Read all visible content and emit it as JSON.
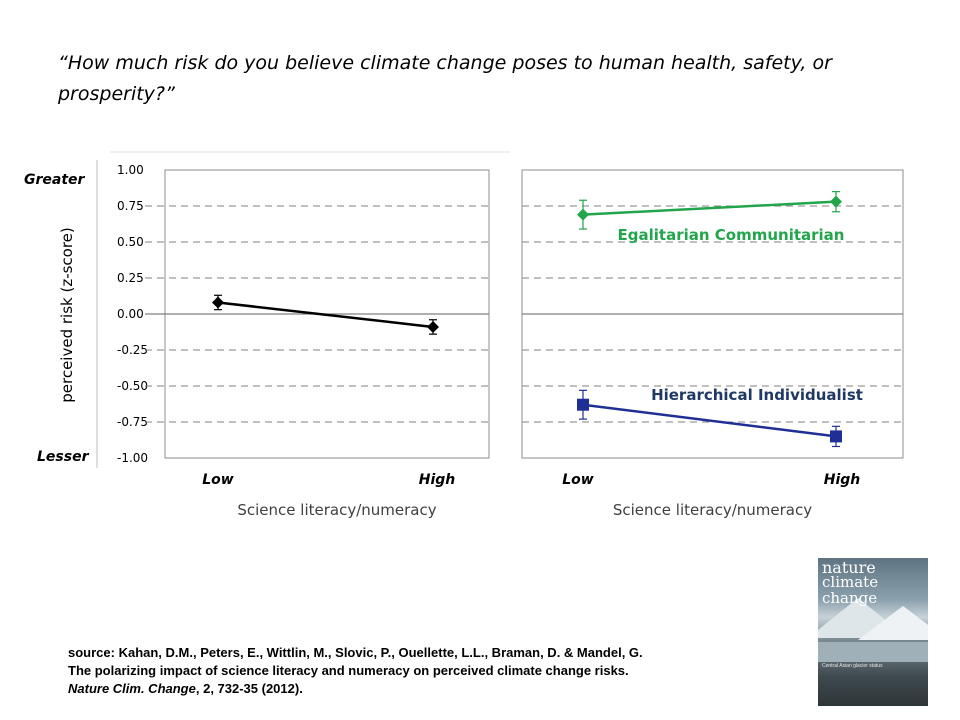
{
  "question": "“How much risk do you believe climate change poses to human health, safety, or prosperity?”",
  "y_axis": {
    "label": "perceived risk (z-score)",
    "top_label": "Greater",
    "bottom_label": "Lesser",
    "ticks": [
      "1.00",
      "0.75",
      "0.50",
      "0.25",
      "0.00",
      "-0.25",
      "-0.50",
      "-0.75",
      "-1.00"
    ]
  },
  "colors": {
    "overall": "#000000",
    "egalitarian": "#22a54b",
    "hierarchical": "#1f2f96",
    "hierarchical_label": "#1f3864",
    "grid": "#808080"
  },
  "chart_data": [
    {
      "type": "line",
      "categories": [
        "Low",
        "High"
      ],
      "xlabel": "Science literacy/numeracy",
      "ylabel": "perceived risk (z-score)",
      "ylim": [
        -1.0,
        1.0
      ],
      "grid": true,
      "series": [
        {
          "values": [
            0.08,
            -0.09
          ],
          "error": [
            0.05,
            0.05
          ],
          "marker": "diamond",
          "color": "#000000"
        }
      ]
    },
    {
      "type": "line",
      "categories": [
        "Low",
        "High"
      ],
      "xlabel": "Science literacy/numeracy",
      "ylim": [
        -1.0,
        1.0
      ],
      "grid": true,
      "series": [
        {
          "name": "Egalitarian Communitarian",
          "values": [
            0.69,
            0.78
          ],
          "error": [
            0.1,
            0.07
          ],
          "marker": "diamond",
          "color": "#22a54b"
        },
        {
          "name": "Hierarchical Individualist",
          "values": [
            -0.63,
            -0.85
          ],
          "error": [
            0.1,
            0.07
          ],
          "marker": "square",
          "color": "#1f2f96"
        }
      ]
    }
  ],
  "source": {
    "line1": "source: Kahan, D.M., Peters, E., Wittlin, M., Slovic, P., Ouellette, L.L., Braman, D. & Mandel, G.",
    "line2": "The polarizing impact of science literacy and numeracy on perceived climate change risks.",
    "journal": "Nature Clim. Change",
    "citation_rest": ", 2, 732-35 (2012)."
  },
  "cover": {
    "title_line1": "nature",
    "title_line2": "climate change",
    "caption": "Central Asian glacier status"
  }
}
